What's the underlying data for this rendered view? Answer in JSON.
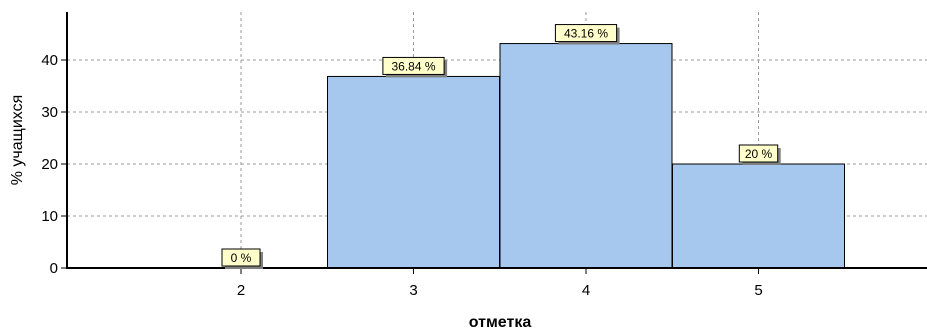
{
  "chart_data": {
    "type": "bar",
    "title": "",
    "xlabel": "отметка",
    "ylabel": "% учащихся",
    "categories": [
      "2",
      "3",
      "4",
      "5"
    ],
    "values": [
      0,
      36.84,
      43.16,
      20
    ],
    "data_labels": [
      "0 %",
      "36.84 %",
      "43.16 %",
      "20 %"
    ],
    "y_ticks": [
      "0",
      "10",
      "20",
      "30",
      "40"
    ],
    "ylim": [
      0,
      48
    ],
    "grid": true,
    "legend": "none",
    "colors": {
      "bar_fill": "#a6c8ee",
      "bar_stroke": "#000000",
      "label_fill": "#ffffcc",
      "label_shadow": "#808080",
      "grid": "#9a9a9a"
    }
  }
}
